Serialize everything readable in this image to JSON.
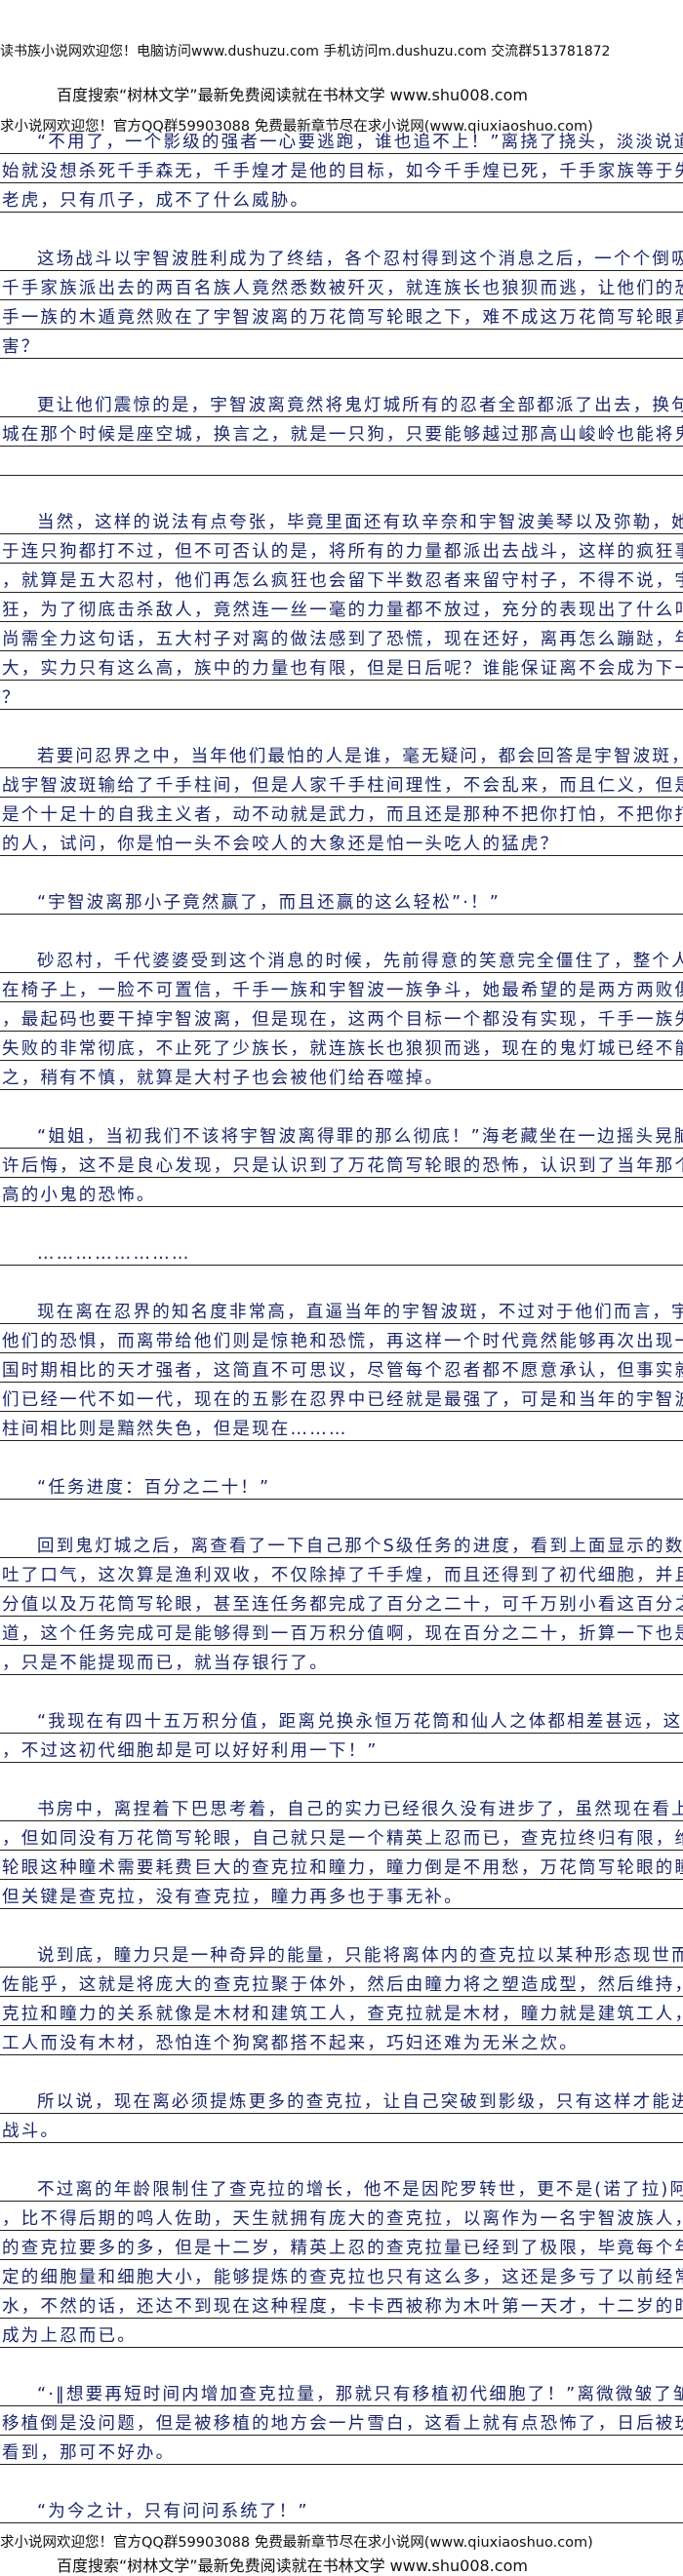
{
  "header": {
    "site_notice": "读书族小说网欢迎您！电脑访问www.dushuzu.com 手机访问m.dushuzu.com 交流群513781872",
    "search_notice": "百度搜索“树林文学”最新免费阅读就在书林文学 www.shu008.com",
    "welcome_notice": "求小说网欢迎您！官方QQ群59903088 免费最新章节尽在求小说网(www.qiuxiaoshuo.com)"
  },
  "paragraphs": [
    {
      "lines": [
        "“不用了，一个影级的强者一心要逃跑，谁也追不上！”离挠了挠头，淡淡说道，他一开",
        "始就没想杀死千手森无，千手煌才是他的目标，如今千手煌已死，千手家族等于失去了牙齿的",
        "老虎，只有爪子，成不了什么威胁。"
      ]
    },
    {
      "lines": [
        "这场战斗以宇智波胜利成为了终结，各个忍村得到这个消息之后，一个个倒吸了口冷气，",
        "千手家族派出去的两百名族人竟然悉数被歼灭，就连族长也狼狈而逃，让他们的恐惧的是，千",
        "手一族的木遁竟然败在了宇智波离的万花筒写轮眼之下，难不成这万花筒写轮眼真的有这么厉",
        "害？"
      ]
    },
    {
      "lines": [
        "更让他们震惊的是，宇智波离竟然将鬼灯城所有的忍者全部都派了出去，换句话说，鬼灯",
        "城在那个时候是座空城，换言之，就是一只狗，只要能够越过那高山峻岭也能将鬼灯城霸占。"
      ],
      "extra_rule": true
    },
    {
      "lines": [
        "当然，这样的说法有点夸张，毕竟里面还有玖辛奈和宇智波美琴以及弥勒，她们三个不至",
        "于连只狗都打不过，但不可否认的是，将所有的力量都派出去战斗，这样的疯狂事谁也不敢做",
        "，就算是五大忍村，他们再怎么疯狂也会留下半数忍者来留守村子，不得不说，宇智波离很疯",
        "狂，为了彻底击杀敌人，竟然连一丝一毫的力量都不放过，充分的表现出了什么叫狮子搏兔，",
        "尚需全力这句话，五大村子对离的做法感到了恐慌，现在还好，离再怎么蹦跶，年龄只有这么",
        "大，实力只有这么高，族中的力量也有限，但是日后呢？谁能保证离不会成为下一个宇智波斑",
        "？"
      ]
    },
    {
      "lines": [
        "若要问忍界之中，当年他们最怕的人是谁，毫无疑问，都会回答是宇智波斑，虽然最终之",
        "战宇智波斑输给了千手柱间，但是人家千手柱间理性，不会乱来，而且仁义，但是斑不同，他",
        "是个十足十的自我主义者，动不动就是武力，而且还是那种不把你打怕，不把你打残就不收手",
        "的人，试问，你是怕一头不会咬人的大象还是怕一头吃人的猛虎？"
      ]
    },
    {
      "lines": [
        "“宇智波离那小子竟然赢了，而且还赢的这么轻松”·！”"
      ]
    },
    {
      "lines": [
        "砂忍村，千代婆婆受到这个消息的时候，先前得意的笑意完全僵住了，整个人无力的瘫坐",
        "在椅子上，一脸不可置信，千手一族和宇智波一族争斗，她最希望的是两方两败俱伤，再不行",
        "，最起码也要干掉宇智波离，但是现在，这两个目标一个都没有实现，千手一族失败了，而且",
        "失败的非常彻底，不止死了少族长，就连族长也狼狈而逃，现在的鬼灯城已经不能以小势力视",
        "之，稍有不慎，就算是大村子也会被他们给吞噬掉。"
      ]
    },
    {
      "lines": [
        "“姐姐，当初我们不该将宇智波离得罪的那么彻底！”海老藏坐在一边摇头晃脑，带着少",
        "许后悔，这不是良心发现，只是认识到了万花筒写轮眼的恐怖，认识到了当年那个只有他们半",
        "高的小鬼的恐怖。"
      ]
    },
    {
      "lines": [
        "……………………"
      ]
    },
    {
      "lines": [
        "现在离在忍界的知名度非常高，直逼当年的宇智波斑，不过对于他们而言，宇智波斑带给",
        "他们的恐惧，而离带给他们则是惊艳和恐慌，再这样一个时代竟然能够再次出现一个能够与战",
        "国时期相比的天才强者，这简直不可思议，尽管每个忍者都不愿意承认，但事实就如此，忍者",
        "们已经一代不如一代，现在的五影在忍界中已经就是最强了，可是和当年的宇智波斑以及千手",
        "柱间相比则是黯然失色，但是现在………"
      ]
    },
    {
      "lines": [
        "“任务进度：百分之二十！”"
      ]
    },
    {
      "lines": [
        "回到鬼灯城之后，离查看了一下自己那个S级任务的进度，看到上面显示的数据，离微微",
        "吐了口气，这次算是渔利双收，不仅除掉了千手煌，而且还得到了初代细胞，并且还有十万积",
        "分值以及万花筒写轮眼，甚至连任务都完成了百分之二十，可千万别小看这百分之二十，要知",
        "道，这个任务完成可是能够得到一百万积分值啊，现在百分之二十，折算一下也是二十万积分",
        "，只是不能提现而已，就当存银行了。"
      ]
    },
    {
      "lines": [
        "“我现在有四十五万积分值，距离兑换永恒万花筒和仙人之体都相差甚远，这个可以不急",
        "，不过这初代细胞却是可以好好利用一下！”"
      ]
    },
    {
      "lines": [
        "书房中，离捏着下巴思考着，自己的实力已经很久没有进步了，虽然现在看上去好像很强",
        "，但如同没有万花筒写轮眼，自己就只是一个精英上忍而已，查克拉终归有限，维持万花筒写",
        "轮眼这种瞳术需要耗费巨大的查克拉和瞳力，瞳力倒是不用愁，万花筒写轮眼的瞳力很强大，",
        "但关键是查克拉，没有查克拉，瞳力再多也于事无补。"
      ]
    },
    {
      "lines": [
        "说到底，瞳力只是一种奇异的能量，只能将离体内的查克拉以某种形态现世而已，比如须",
        "佐能乎，这就是将庞大的查克拉聚于体外，然后由瞳力将之塑造成型，然后维持，换言之，查",
        "克拉和瞳力的关系就像是木材和建筑工人，查克拉就是木材，瞳力就是建筑工人，你光有建筑",
        "工人而没有木材，恐怕连个狗窝都搭不起来，巧妇还难为无米之炊。"
      ]
    },
    {
      "lines": [
        "所以说，现在离必须提炼更多的查克拉，让自己突破到影级，只有这样才能进行长时间的",
        "战斗。"
      ]
    },
    {
      "lines": [
        "不过离的年龄限制住了查克拉的增长，他不是因陀罗转世，更不是(诺了拉)阿修罗投胎",
        "，比不得后期的鸣人佐助，天生就拥有庞大的查克拉，以离作为一名宇智波族人，虽然比常人",
        "的查克拉要多的多，但是十二岁，精英上忍的查克拉量已经到了极限，毕竟每个年龄段都有固",
        "定的细胞量和细胞大小，能够提炼的查克拉也只有这么多，这还是多亏了以前经常服用生命药",
        "水，不然的话，还达不到现在这种程度，卡卡西被称为木叶第一天才，十二岁的时候也才勉强",
        "成为上忍而已。"
      ]
    },
    {
      "lines": [
        "“·‖想要再短时间内增加查克拉量，那就只有移植初代细胞了！”离微微皱了皱眉头，",
        "移植倒是没问题，但是被移植的地方会一片雪白，这看上就有点恐怖了，日后被玖辛奈和美琴",
        "看到，那可不好办。"
      ]
    },
    {
      "lines": [
        "“为今之计，只有问问系统了！”"
      ]
    }
  ],
  "footer": {
    "welcome_notice": "求小说网欢迎您！官方QQ群59903088 免费最新章节尽在求小说网(www.qiuxiaoshuo.com)",
    "search_notice": "百度搜索“树林文学”最新免费阅读就在书林文学 www.shu008.com"
  }
}
